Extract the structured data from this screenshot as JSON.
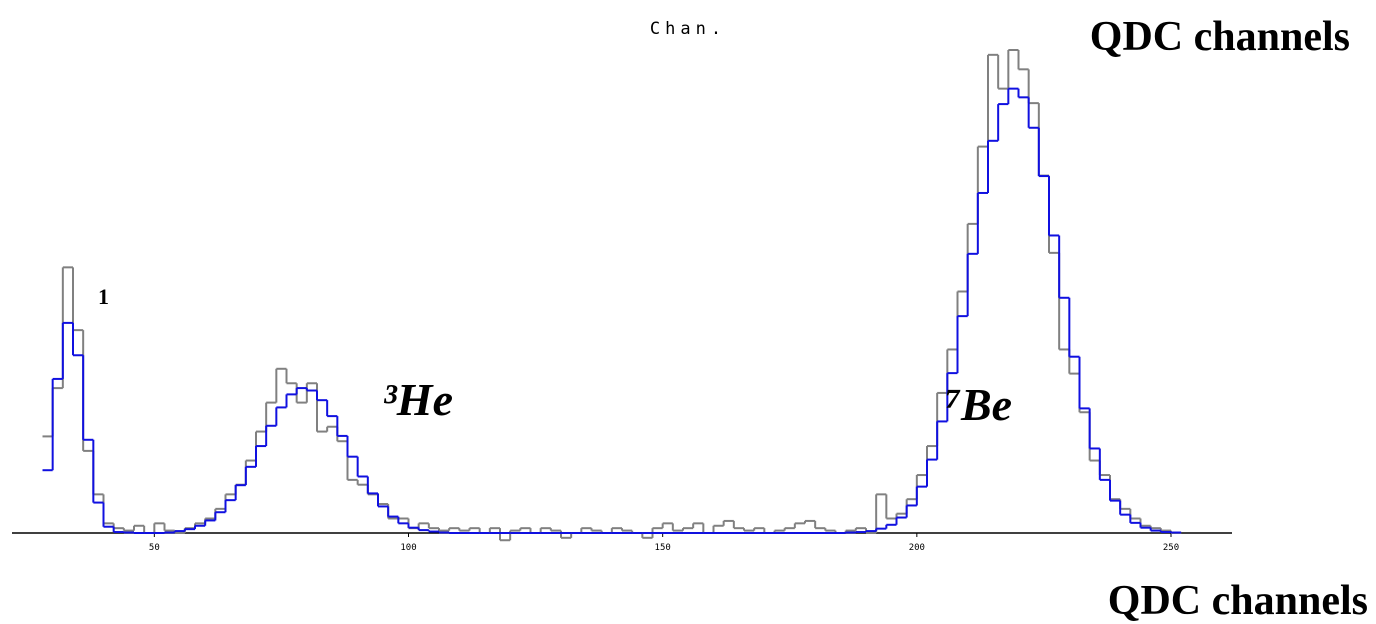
{
  "chart_data": {
    "type": "histogram",
    "title": "Chan.",
    "x_label": "QDC channels",
    "x_label_top": "QDC channels",
    "annotations": [
      "1",
      "³He",
      "⁷Be"
    ],
    "xlim": [
      22,
      262
    ],
    "ylim": [
      0,
      100
    ],
    "xticks": [
      50,
      100,
      150,
      200,
      250
    ],
    "bins": [
      28,
      30,
      32,
      34,
      36,
      38,
      40,
      42,
      44,
      46,
      48,
      50,
      52,
      54,
      56,
      58,
      60,
      62,
      64,
      66,
      68,
      70,
      72,
      74,
      76,
      78,
      80,
      82,
      84,
      86,
      88,
      90,
      92,
      94,
      96,
      98,
      100,
      102,
      104,
      106,
      108,
      110,
      112,
      114,
      116,
      118,
      120,
      122,
      124,
      126,
      128,
      130,
      132,
      134,
      136,
      138,
      140,
      142,
      144,
      146,
      148,
      150,
      152,
      154,
      156,
      158,
      160,
      162,
      164,
      166,
      168,
      170,
      172,
      174,
      176,
      178,
      180,
      182,
      184,
      186,
      188,
      190,
      192,
      194,
      196,
      198,
      200,
      202,
      204,
      206,
      208,
      210,
      212,
      214,
      216,
      218,
      220,
      222,
      224,
      226,
      228,
      230,
      232,
      234,
      236,
      238,
      240,
      242,
      244,
      246,
      248,
      250,
      252
    ],
    "series": [
      {
        "color": "#808080",
        "values": [
          20,
          30,
          55,
          42,
          17,
          8,
          2,
          1,
          0.5,
          1.5,
          0,
          2,
          0.5,
          0,
          1,
          2,
          3,
          5,
          8,
          10,
          15,
          21,
          27,
          34,
          31,
          27,
          31,
          21,
          22,
          19,
          11,
          10,
          8,
          6,
          3,
          3,
          1,
          2,
          1,
          0.5,
          1,
          0.5,
          1,
          0,
          1,
          -1.5,
          0.5,
          1,
          0,
          1,
          0.5,
          -1,
          0,
          1,
          0.5,
          0,
          1,
          0.5,
          0,
          -1,
          1,
          2,
          0.5,
          1,
          2,
          0,
          1.5,
          2.5,
          1,
          0.5,
          1,
          0,
          0.5,
          1,
          2,
          2.5,
          1,
          0.5,
          0,
          0.5,
          1,
          0,
          8,
          3,
          4,
          7,
          12,
          18,
          29,
          38,
          50,
          64,
          80,
          99,
          92,
          100,
          96,
          89,
          74,
          58,
          38,
          33,
          25,
          15,
          12,
          7,
          5,
          3,
          1.5,
          1,
          0.5,
          0
        ]
      },
      {
        "color": "#1010e0",
        "values": [
          13,
          31.9,
          43.5,
          36.8,
          19.3,
          6.3,
          1.3,
          0.2,
          0.1,
          0,
          0,
          0,
          0.1,
          0.4,
          0.8,
          1.5,
          2.6,
          4.3,
          6.8,
          9.9,
          13.7,
          18,
          22.2,
          26,
          28.7,
          30,
          29.5,
          27.5,
          24.2,
          20.1,
          15.8,
          11.7,
          8.2,
          5.5,
          3.4,
          2,
          1.1,
          0.6,
          0.3,
          0.1,
          0,
          0,
          0,
          0,
          0,
          0,
          0,
          0,
          0,
          0,
          0,
          0,
          0,
          0,
          0,
          0,
          0,
          0,
          0,
          0,
          0,
          0,
          0,
          0,
          0,
          0,
          0,
          0,
          0,
          0,
          0,
          0,
          0,
          0,
          0,
          0,
          0,
          0,
          0,
          0.1,
          0.2,
          0.4,
          0.9,
          1.7,
          3.2,
          5.7,
          9.6,
          15.2,
          23.1,
          33.1,
          44.9,
          57.8,
          70.4,
          81.2,
          88.8,
          92,
          90.2,
          83.9,
          73.9,
          61.6,
          48.7,
          36.5,
          25.8,
          17.5,
          11,
          6.7,
          3.8,
          2.1,
          1.1,
          0.5,
          0.2,
          0.1
        ]
      }
    ]
  }
}
